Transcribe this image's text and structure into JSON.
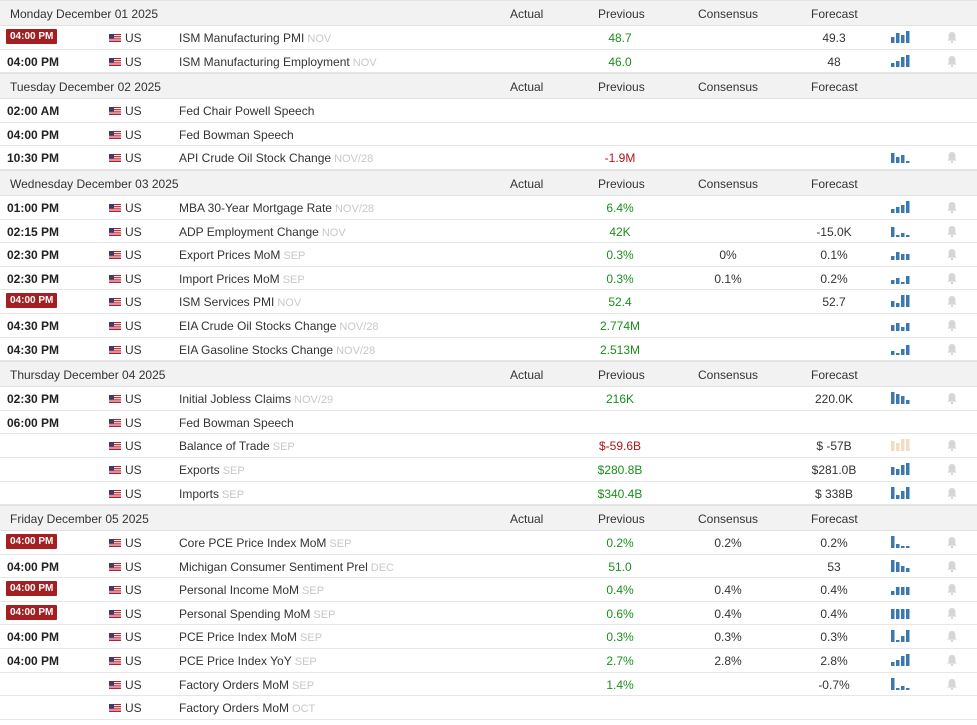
{
  "headers": {
    "actual": "Actual",
    "previous": "Previous",
    "consensus": "Consensus",
    "forecast": "Forecast"
  },
  "days": [
    {
      "date": "Monday December 01 2025",
      "events": [
        {
          "time": "04:00 PM",
          "highlight": true,
          "country": "US",
          "name": "ISM Manufacturing PMI",
          "period": "NOV",
          "actual": "",
          "previous": "48.7",
          "prev_color": "pos",
          "consensus": "",
          "forecast": "49.3",
          "chart": [
            3,
            5,
            4,
            6
          ],
          "chart_color": "#3b78b0"
        },
        {
          "time": "04:00 PM",
          "highlight": false,
          "country": "US",
          "name": "ISM Manufacturing Employment",
          "period": "NOV",
          "actual": "",
          "previous": "46.0",
          "prev_color": "pos",
          "consensus": "",
          "forecast": "48",
          "chart": [
            2,
            3,
            5,
            6
          ],
          "chart_color": "#3b78b0"
        }
      ]
    },
    {
      "date": "Tuesday December 02 2025",
      "events": [
        {
          "time": "02:00 AM",
          "highlight": false,
          "country": "US",
          "name": "Fed Chair Powell Speech",
          "period": "",
          "actual": "",
          "previous": "",
          "prev_color": "neu",
          "consensus": "",
          "forecast": "",
          "chart": null,
          "chart_color": ""
        },
        {
          "time": "04:00 PM",
          "highlight": false,
          "country": "US",
          "name": "Fed Bowman Speech",
          "period": "",
          "actual": "",
          "previous": "",
          "prev_color": "neu",
          "consensus": "",
          "forecast": "",
          "chart": null,
          "chart_color": ""
        },
        {
          "time": "10:30 PM",
          "highlight": false,
          "country": "US",
          "name": "API Crude Oil Stock Change",
          "period": "NOV/28",
          "actual": "",
          "previous": "-1.9M",
          "prev_color": "neg",
          "consensus": "",
          "forecast": "",
          "chart": [
            5,
            3,
            4,
            1
          ],
          "chart_color": "#3b78b0"
        }
      ]
    },
    {
      "date": "Wednesday December 03 2025",
      "events": [
        {
          "time": "01:00 PM",
          "highlight": false,
          "country": "US",
          "name": "MBA 30-Year Mortgage Rate",
          "period": "NOV/28",
          "actual": "",
          "previous": "6.4%",
          "prev_color": "pos",
          "consensus": "",
          "forecast": "",
          "chart": [
            2,
            3,
            4,
            6
          ],
          "chart_color": "#3b78b0"
        },
        {
          "time": "02:15 PM",
          "highlight": false,
          "country": "US",
          "name": "ADP Employment Change",
          "period": "NOV",
          "actual": "",
          "previous": "42K",
          "prev_color": "pos",
          "consensus": "",
          "forecast": "-15.0K",
          "chart": [
            5,
            1,
            2,
            1
          ],
          "chart_color": "#3b78b0"
        },
        {
          "time": "02:30 PM",
          "highlight": false,
          "country": "US",
          "name": "Export Prices MoM",
          "period": "SEP",
          "actual": "",
          "previous": "0.3%",
          "prev_color": "pos",
          "consensus": "0%",
          "forecast": "0.1%",
          "chart": [
            2,
            4,
            3,
            3
          ],
          "chart_color": "#3b78b0"
        },
        {
          "time": "02:30 PM",
          "highlight": false,
          "country": "US",
          "name": "Import Prices MoM",
          "period": "SEP",
          "actual": "",
          "previous": "0.3%",
          "prev_color": "pos",
          "consensus": "0.1%",
          "forecast": "0.2%",
          "chart": [
            2,
            3,
            1,
            4
          ],
          "chart_color": "#3b78b0"
        },
        {
          "time": "04:00 PM",
          "highlight": true,
          "country": "US",
          "name": "ISM Services PMI",
          "period": "NOV",
          "actual": "",
          "previous": "52.4",
          "prev_color": "pos",
          "consensus": "",
          "forecast": "52.7",
          "chart": [
            3,
            2,
            6,
            6
          ],
          "chart_color": "#3b78b0"
        },
        {
          "time": "04:30 PM",
          "highlight": false,
          "country": "US",
          "name": "EIA Crude Oil Stocks Change",
          "period": "NOV/28",
          "actual": "",
          "previous": "2.774M",
          "prev_color": "pos",
          "consensus": "",
          "forecast": "",
          "chart": [
            3,
            4,
            2,
            4
          ],
          "chart_color": "#3b78b0"
        },
        {
          "time": "04:30 PM",
          "highlight": false,
          "country": "US",
          "name": "EIA Gasoline Stocks Change",
          "period": "NOV/28",
          "actual": "",
          "previous": "2.513M",
          "prev_color": "pos",
          "consensus": "",
          "forecast": "",
          "chart": [
            2,
            1,
            3,
            5
          ],
          "chart_color": "#3b78b0"
        }
      ]
    },
    {
      "date": "Thursday December 04 2025",
      "events": [
        {
          "time": "02:30 PM",
          "highlight": false,
          "country": "US",
          "name": "Initial Jobless Claims",
          "period": "NOV/29",
          "actual": "",
          "previous": "216K",
          "prev_color": "pos",
          "consensus": "",
          "forecast": "220.0K",
          "chart": [
            6,
            5,
            4,
            2
          ],
          "chart_color": "#3b78b0"
        },
        {
          "time": "06:00 PM",
          "highlight": false,
          "country": "US",
          "name": "Fed Bowman Speech",
          "period": "",
          "actual": "",
          "previous": "",
          "prev_color": "neu",
          "consensus": "",
          "forecast": "",
          "chart": null,
          "chart_color": ""
        },
        {
          "time": "",
          "highlight": false,
          "country": "US",
          "name": "Balance of Trade",
          "period": "SEP",
          "actual": "",
          "previous": "$-59.6B",
          "prev_color": "neg",
          "consensus": "",
          "forecast": "$ -57B",
          "chart": [
            5,
            4,
            6,
            6
          ],
          "chart_color": "#f1ddc4"
        },
        {
          "time": "",
          "highlight": false,
          "country": "US",
          "name": "Exports",
          "period": "SEP",
          "actual": "",
          "previous": "$280.8B",
          "prev_color": "pos",
          "consensus": "",
          "forecast": "$281.0B",
          "chart": [
            4,
            3,
            5,
            6
          ],
          "chart_color": "#3b78b0"
        },
        {
          "time": "",
          "highlight": false,
          "country": "US",
          "name": "Imports",
          "period": "SEP",
          "actual": "",
          "previous": "$340.4B",
          "prev_color": "pos",
          "consensus": "",
          "forecast": "$ 338B",
          "chart": [
            6,
            2,
            4,
            6
          ],
          "chart_color": "#3b78b0"
        }
      ]
    },
    {
      "date": "Friday December 05 2025",
      "events": [
        {
          "time": "04:00 PM",
          "highlight": true,
          "country": "US",
          "name": "Core PCE Price Index MoM",
          "period": "SEP",
          "actual": "",
          "previous": "0.2%",
          "prev_color": "pos",
          "consensus": "0.2%",
          "forecast": "0.2%",
          "chart": [
            6,
            2,
            1,
            1
          ],
          "chart_color": "#3b78b0"
        },
        {
          "time": "04:00 PM",
          "highlight": false,
          "country": "US",
          "name": "Michigan Consumer Sentiment Prel",
          "period": "DEC",
          "actual": "",
          "previous": "51.0",
          "prev_color": "pos",
          "consensus": "",
          "forecast": "53",
          "chart": [
            6,
            5,
            3,
            2
          ],
          "chart_color": "#3b78b0"
        },
        {
          "time": "04:00 PM",
          "highlight": true,
          "country": "US",
          "name": "Personal Income MoM",
          "period": "SEP",
          "actual": "",
          "previous": "0.4%",
          "prev_color": "pos",
          "consensus": "0.4%",
          "forecast": "0.4%",
          "chart": [
            2,
            4,
            4,
            4
          ],
          "chart_color": "#3b78b0"
        },
        {
          "time": "04:00 PM",
          "highlight": true,
          "country": "US",
          "name": "Personal Spending MoM",
          "period": "SEP",
          "actual": "",
          "previous": "0.6%",
          "prev_color": "pos",
          "consensus": "0.4%",
          "forecast": "0.4%",
          "chart": [
            5,
            5,
            5,
            5
          ],
          "chart_color": "#3b78b0"
        },
        {
          "time": "04:00 PM",
          "highlight": false,
          "country": "US",
          "name": "PCE Price Index MoM",
          "period": "SEP",
          "actual": "",
          "previous": "0.3%",
          "prev_color": "pos",
          "consensus": "0.3%",
          "forecast": "0.3%",
          "chart": [
            6,
            1,
            3,
            6
          ],
          "chart_color": "#3b78b0"
        },
        {
          "time": "04:00 PM",
          "highlight": false,
          "country": "US",
          "name": "PCE Price Index YoY",
          "period": "SEP",
          "actual": "",
          "previous": "2.7%",
          "prev_color": "pos",
          "consensus": "2.8%",
          "forecast": "2.8%",
          "chart": [
            2,
            3,
            5,
            6
          ],
          "chart_color": "#3b78b0"
        },
        {
          "time": "",
          "highlight": false,
          "country": "US",
          "name": "Factory Orders MoM",
          "period": "SEP",
          "actual": "",
          "previous": "1.4%",
          "prev_color": "pos",
          "consensus": "",
          "forecast": "-0.7%",
          "chart": [
            6,
            1,
            2,
            1
          ],
          "chart_color": "#3b78b0"
        },
        {
          "time": "",
          "highlight": false,
          "country": "US",
          "name": "Factory Orders MoM",
          "period": "OCT",
          "actual": "",
          "previous": "",
          "prev_color": "neu",
          "consensus": "",
          "forecast": "",
          "chart": null,
          "chart_color": ""
        }
      ]
    }
  ]
}
